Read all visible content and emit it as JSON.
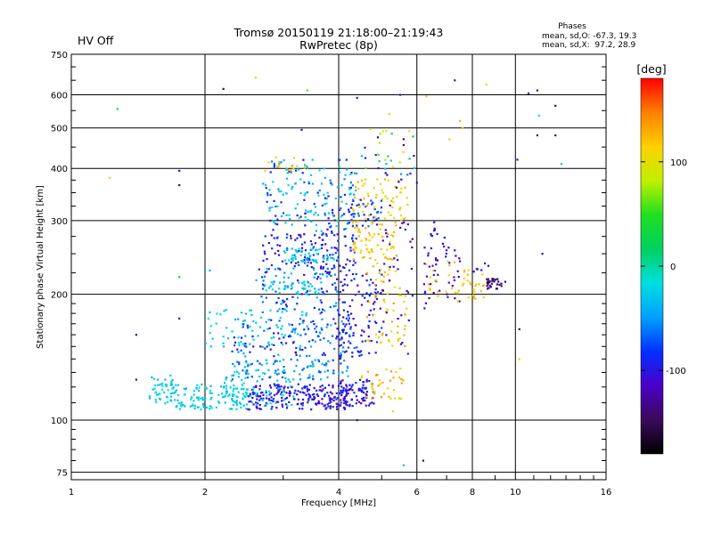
{
  "status": {
    "hv_label": "HV Off",
    "hv_color": "#e01010"
  },
  "chart_data": {
    "type": "scatter",
    "title": "Tromsø 20150119 21:18:00–21:19:43",
    "subtitle": "RwPretec (8p)",
    "xlabel": "Frequency [MHz]",
    "ylabel": "Stationary phase Virtual Height [km]",
    "x_scale": "log",
    "y_scale": "log",
    "xlim": [
      1,
      16
    ],
    "ylim": [
      72,
      750
    ],
    "x_ticks": [
      1,
      2,
      4,
      6,
      8,
      10,
      16
    ],
    "y_ticks": [
      75,
      100,
      200,
      300,
      400,
      500,
      600,
      750
    ],
    "grid": true,
    "phases_box": {
      "title": "Phases",
      "line_o": "mean, sd,O: -67.3, 19.3",
      "line_x": "mean, sd,X:  97.2, 28.9"
    },
    "colorbar": {
      "label": "[deg]",
      "range": [
        -180,
        180
      ],
      "ticks": [
        100,
        0,
        -100
      ],
      "colors": [
        "#000000",
        "#3a0a5a",
        "#4b00c8",
        "#0030ff",
        "#00a0ff",
        "#00e0e0",
        "#00d060",
        "#20e020",
        "#c0f000",
        "#ffd000",
        "#ff8000",
        "#ff0000"
      ]
    },
    "points": [
      [
        1.27,
        555,
        40
      ],
      [
        1.22,
        380,
        120
      ],
      [
        2.2,
        620,
        -140
      ],
      [
        2.6,
        660,
        110
      ],
      [
        3.4,
        615,
        60
      ],
      [
        4.4,
        590,
        -100
      ],
      [
        5.5,
        600,
        -100
      ],
      [
        6.3,
        595,
        120
      ],
      [
        7.3,
        650,
        -110
      ],
      [
        8.6,
        635,
        110
      ],
      [
        10.7,
        605,
        -110
      ],
      [
        11.2,
        615,
        -130
      ],
      [
        11.3,
        535,
        -20
      ],
      [
        12.3,
        565,
        -140
      ],
      [
        4.9,
        475,
        -140
      ],
      [
        5.6,
        470,
        -150
      ],
      [
        7.1,
        470,
        120
      ],
      [
        10.1,
        420,
        -110
      ],
      [
        11.2,
        480,
        -130
      ],
      [
        12.3,
        480,
        -140
      ],
      [
        12.7,
        410,
        -30
      ],
      [
        1.75,
        395,
        -120
      ],
      [
        1.75,
        365,
        -140
      ],
      [
        1.75,
        220,
        40
      ],
      [
        1.75,
        175,
        -120
      ],
      [
        1.4,
        160,
        -130
      ],
      [
        1.4,
        125,
        -120
      ],
      [
        3.3,
        495,
        -120
      ],
      [
        6.2,
        80,
        -140
      ],
      [
        5.6,
        78,
        -30
      ],
      [
        11.5,
        250,
        -120
      ],
      [
        10.2,
        165,
        -140
      ],
      [
        10.2,
        140,
        110
      ],
      [
        7.6,
        500,
        120
      ],
      [
        5.2,
        540,
        110
      ],
      [
        4.4,
        100,
        -120
      ],
      [
        2.0,
        228,
        -40
      ],
      [
        2.05,
        228,
        -40
      ],
      [
        5.3,
        105,
        110
      ],
      [
        5.1,
        390,
        -140
      ],
      [
        5.4,
        360,
        -140
      ],
      [
        5.6,
        455,
        -140
      ],
      [
        6.0,
        370,
        -120
      ],
      [
        7.5,
        520,
        130
      ]
    ],
    "clusters": [
      {
        "fx": [
          1.5,
          1.72
        ],
        "hx": [
          108,
          128
        ],
        "phase": [
          -40,
          -10
        ],
        "n": 50
      },
      {
        "fx": [
          1.72,
          2.5
        ],
        "hx": [
          106,
          122
        ],
        "phase": [
          -40,
          -5
        ],
        "n": 120
      },
      {
        "fx": [
          2.5,
          4.3
        ],
        "hx": [
          106,
          122
        ],
        "phase": [
          -120,
          -80
        ],
        "n": 220
      },
      {
        "fx": [
          2.2,
          3.2
        ],
        "hx": [
          108,
          132
        ],
        "phase": [
          -40,
          -10
        ],
        "n": 60
      },
      {
        "fx": [
          2.3,
          4.2
        ],
        "hx": [
          125,
          140
        ],
        "phase": [
          -80,
          -20
        ],
        "n": 100
      },
      {
        "fx": [
          2.3,
          4.4
        ],
        "hx": [
          142,
          175
        ],
        "phase": [
          -110,
          -30
        ],
        "n": 140
      },
      {
        "fx": [
          2.0,
          3.4
        ],
        "hx": [
          150,
          185
        ],
        "phase": [
          -40,
          -10
        ],
        "n": 60
      },
      {
        "fx": [
          2.6,
          4.0
        ],
        "hx": [
          178,
          232
        ],
        "phase": [
          -110,
          -30
        ],
        "n": 110
      },
      {
        "fx": [
          2.7,
          3.7
        ],
        "hx": [
          200,
          215
        ],
        "phase": [
          -40,
          -10
        ],
        "n": 40
      },
      {
        "fx": [
          2.7,
          4.4
        ],
        "hx": [
          230,
          280
        ],
        "phase": [
          -115,
          -70
        ],
        "n": 120
      },
      {
        "fx": [
          3.0,
          4.0
        ],
        "hx": [
          238,
          258
        ],
        "phase": [
          -40,
          -10
        ],
        "n": 50
      },
      {
        "fx": [
          2.7,
          4.4
        ],
        "hx": [
          280,
          420
        ],
        "phase": [
          -110,
          -20
        ],
        "n": 130
      },
      {
        "fx": [
          2.8,
          4.3
        ],
        "hx": [
          290,
          410
        ],
        "phase": [
          -40,
          -5
        ],
        "n": 45
      },
      {
        "fx": [
          2.7,
          3.4
        ],
        "hx": [
          390,
          430
        ],
        "phase": [
          100,
          130
        ],
        "n": 15
      },
      {
        "fx": [
          4.0,
          4.8
        ],
        "hx": [
          108,
          125
        ],
        "phase": [
          -120,
          -80
        ],
        "n": 70
      },
      {
        "fx": [
          4.5,
          5.6
        ],
        "hx": [
          112,
          135
        ],
        "phase": [
          90,
          140
        ],
        "n": 40
      },
      {
        "fx": [
          4.0,
          5.0
        ],
        "hx": [
          140,
          230
        ],
        "phase": [
          -120,
          -70
        ],
        "n": 110
      },
      {
        "fx": [
          4.6,
          5.7
        ],
        "hx": [
          150,
          240
        ],
        "phase": [
          90,
          140
        ],
        "n": 60
      },
      {
        "fx": [
          4.3,
          5.4
        ],
        "hx": [
          240,
          300
        ],
        "phase": [
          100,
          135
        ],
        "n": 70
      },
      {
        "fx": [
          4.3,
          5.8
        ],
        "hx": [
          300,
          380
        ],
        "phase": [
          90,
          130
        ],
        "n": 60
      },
      {
        "fx": [
          4.2,
          5.0
        ],
        "hx": [
          290,
          340
        ],
        "phase": [
          -100,
          -60
        ],
        "n": 40
      },
      {
        "fx": [
          5.0,
          5.9
        ],
        "hx": [
          140,
          420
        ],
        "phase": [
          -130,
          -90
        ],
        "n": 40
      },
      {
        "fx": [
          6.2,
          7.5
        ],
        "hx": [
          185,
          260
        ],
        "phase": [
          -130,
          -90
        ],
        "n": 40
      },
      {
        "fx": [
          6.3,
          7.5
        ],
        "hx": [
          190,
          240
        ],
        "phase": [
          100,
          130
        ],
        "n": 20
      },
      {
        "fx": [
          7.6,
          8.5
        ],
        "hx": [
          195,
          230
        ],
        "phase": [
          110,
          130
        ],
        "n": 25
      },
      {
        "fx": [
          8.6,
          9.5
        ],
        "hx": [
          205,
          218
        ],
        "phase": [
          -150,
          -130
        ],
        "n": 30
      },
      {
        "fx": [
          8.0,
          8.7
        ],
        "hx": [
          225,
          240
        ],
        "phase": [
          -120,
          -100
        ],
        "n": 6
      },
      {
        "fx": [
          6.0,
          7.0
        ],
        "hx": [
          250,
          300
        ],
        "phase": [
          -120,
          -80
        ],
        "n": 15
      },
      {
        "fx": [
          4.5,
          6.0
        ],
        "hx": [
          380,
          500
        ],
        "phase": [
          -120,
          120
        ],
        "n": 30
      }
    ]
  }
}
